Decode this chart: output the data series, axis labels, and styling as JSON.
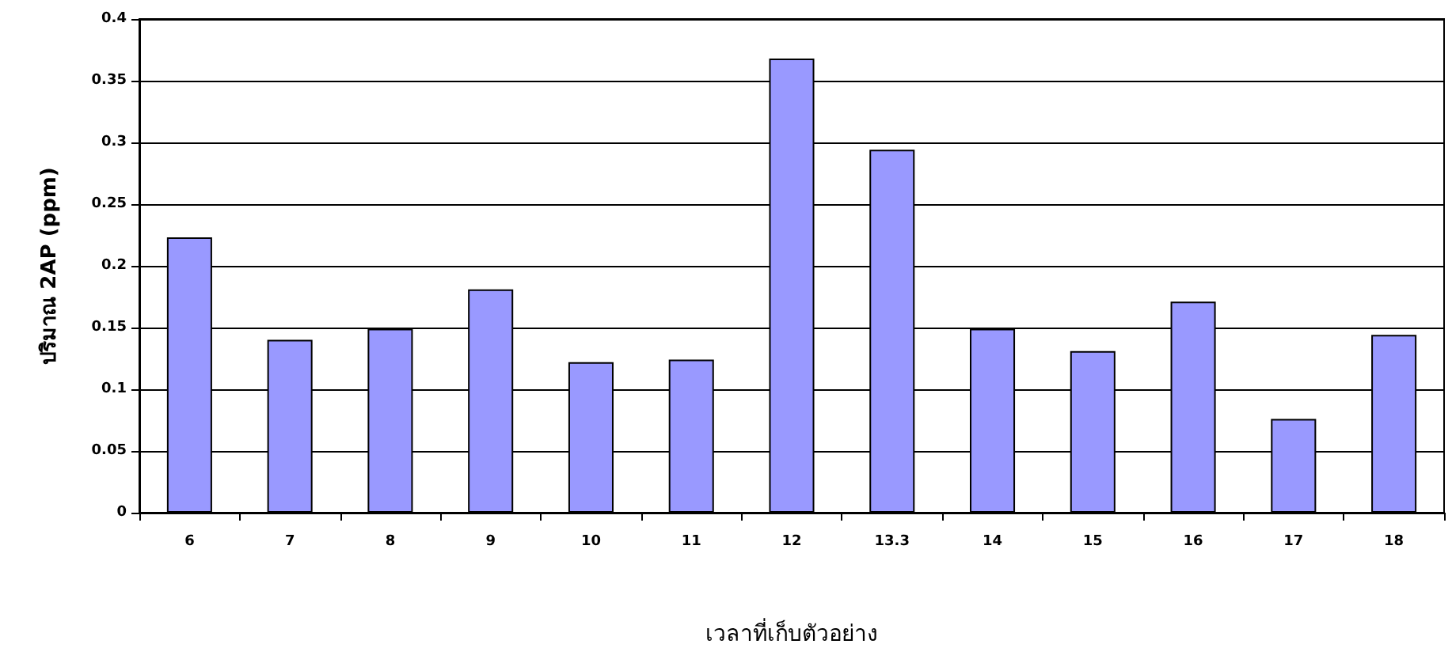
{
  "chart_data": {
    "type": "bar",
    "xlabel": "เวลาที่เก็บตัวอย่าง",
    "ylabel": "ปริมาณ 2AP (ppm)",
    "categories": [
      "6",
      "7",
      "8",
      "9",
      "10",
      "11",
      "12",
      "13.3",
      "14",
      "15",
      "16",
      "17",
      "18"
    ],
    "values": [
      0.223,
      0.14,
      0.149,
      0.181,
      0.122,
      0.124,
      0.368,
      0.294,
      0.149,
      0.131,
      0.171,
      0.076,
      0.144
    ],
    "color": "#9999ff",
    "ylim": [
      0,
      0.4
    ],
    "yticks": [
      0,
      0.05,
      0.1,
      0.15,
      0.2,
      0.25,
      0.3,
      0.35,
      0.4
    ],
    "grid": "y"
  }
}
